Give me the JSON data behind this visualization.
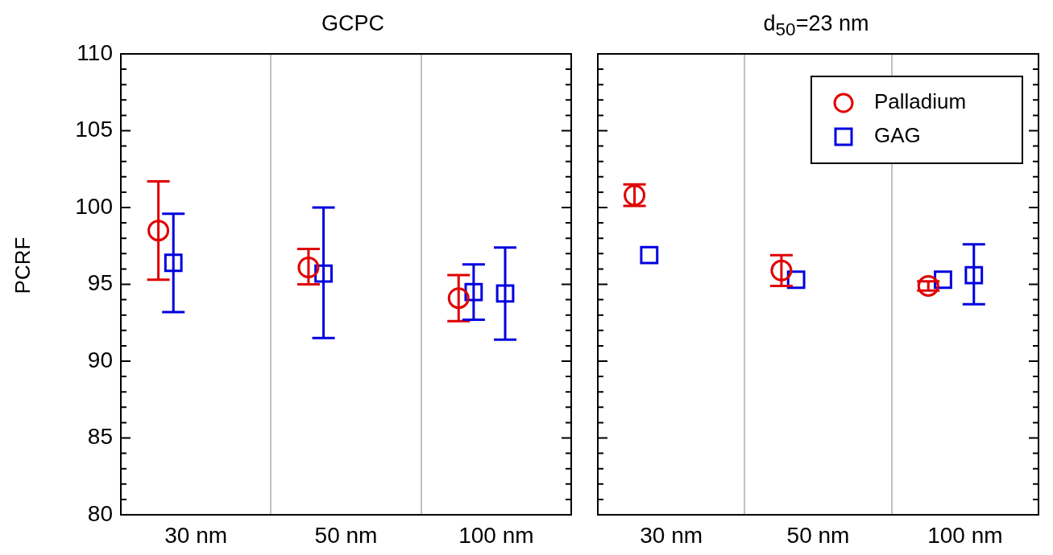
{
  "chart_data": [
    {
      "type": "scatter",
      "title": "GCPC",
      "ylabel": "PCRF",
      "categories": [
        "30 nm",
        "50 nm",
        "100 nm"
      ],
      "ylim": [
        80,
        110
      ],
      "yticks": [
        80,
        {
          "value": 81,
          "label": null
        },
        {
          "value": 82,
          "label": null
        },
        {
          "value": 83,
          "label": null
        },
        {
          "value": 84,
          "label": null
        },
        85,
        {
          "value": 86,
          "label": null
        },
        {
          "value": 87,
          "label": null
        },
        {
          "value": 88,
          "label": null
        },
        {
          "value": 89,
          "label": null
        },
        90,
        {
          "value": 91,
          "label": null
        },
        {
          "value": 92,
          "label": null
        },
        {
          "value": 93,
          "label": null
        },
        {
          "value": 94,
          "label": null
        },
        95,
        {
          "value": 96,
          "label": null
        },
        {
          "value": 97,
          "label": null
        },
        {
          "value": 98,
          "label": null
        },
        {
          "value": 99,
          "label": null
        },
        100,
        {
          "value": 101,
          "label": null
        },
        {
          "value": 102,
          "label": null
        },
        {
          "value": 103,
          "label": null
        },
        {
          "value": 104,
          "label": null
        },
        105,
        {
          "value": 106,
          "label": null
        },
        {
          "value": 107,
          "label": null
        },
        {
          "value": 108,
          "label": null
        },
        {
          "value": 109,
          "label": null
        },
        110
      ],
      "grid": "x",
      "series": [
        {
          "color": "#e00000",
          "marker": "circle",
          "x": [
            "30 nm",
            "50 nm",
            "100 nm"
          ],
          "values": [
            98.5,
            96.1,
            94.1
          ],
          "errors": [
            [
              95.3,
              101.7
            ],
            [
              95.0,
              97.3
            ],
            [
              92.6,
              95.6
            ]
          ]
        },
        {
          "color": "#0000e0",
          "marker": "square",
          "x": [
            "30 nm",
            "50 nm",
            "100 nm",
            "100 nm"
          ],
          "values": [
            96.4,
            95.7,
            94.5,
            94.4
          ],
          "errors": [
            [
              93.2,
              99.6
            ],
            [
              91.5,
              100.0
            ],
            [
              92.7,
              96.3
            ],
            [
              91.4,
              97.4
            ]
          ]
        }
      ]
    },
    {
      "type": "scatter",
      "title": "d$_{50}$=23 nm",
      "categories": [
        "30 nm",
        "50 nm",
        "100 nm"
      ],
      "ylim": [
        80,
        110
      ],
      "yticks": [
        80,
        {
          "value": 81,
          "label": null
        },
        {
          "value": 82,
          "label": null
        },
        {
          "value": 83,
          "label": null
        },
        {
          "value": 84,
          "label": null
        },
        85,
        {
          "value": 86,
          "label": null
        },
        {
          "value": 87,
          "label": null
        },
        {
          "value": 88,
          "label": null
        },
        {
          "value": 89,
          "label": null
        },
        90,
        {
          "value": 91,
          "label": null
        },
        {
          "value": 92,
          "label": null
        },
        {
          "value": 93,
          "label": null
        },
        {
          "value": 94,
          "label": null
        },
        95,
        {
          "value": 96,
          "label": null
        },
        {
          "value": 97,
          "label": null
        },
        {
          "value": 98,
          "label": null
        },
        {
          "value": 99,
          "label": null
        },
        100,
        {
          "value": 101,
          "label": null
        },
        {
          "value": 102,
          "label": null
        },
        {
          "value": 103,
          "label": null
        },
        {
          "value": 104,
          "label": null
        },
        105,
        {
          "value": 106,
          "label": null
        },
        {
          "value": 107,
          "label": null
        },
        {
          "value": 108,
          "label": null
        },
        {
          "value": 109,
          "label": null
        },
        110
      ],
      "tick_labels": "x",
      "grid": "x",
      "legend": "top right",
      "series": [
        {
          "name": "Palladium",
          "color": "#e00000",
          "marker": "circle",
          "x": [
            "30 nm",
            "50 nm",
            "100 nm"
          ],
          "values": [
            100.8,
            95.9,
            94.9
          ],
          "errors": [
            [
              100.1,
              101.5
            ],
            [
              94.9,
              96.9
            ],
            [
              94.6,
              95.2
            ]
          ]
        },
        {
          "name": "GAG",
          "color": "#0000e0",
          "marker": "square",
          "x": [
            "30 nm",
            "50 nm",
            "100 nm",
            "100 nm"
          ],
          "values": [
            96.9,
            95.3,
            95.3,
            95.6
          ],
          "errors": [
            null,
            null,
            null,
            [
              93.7,
              97.6
            ]
          ]
        }
      ]
    }
  ]
}
